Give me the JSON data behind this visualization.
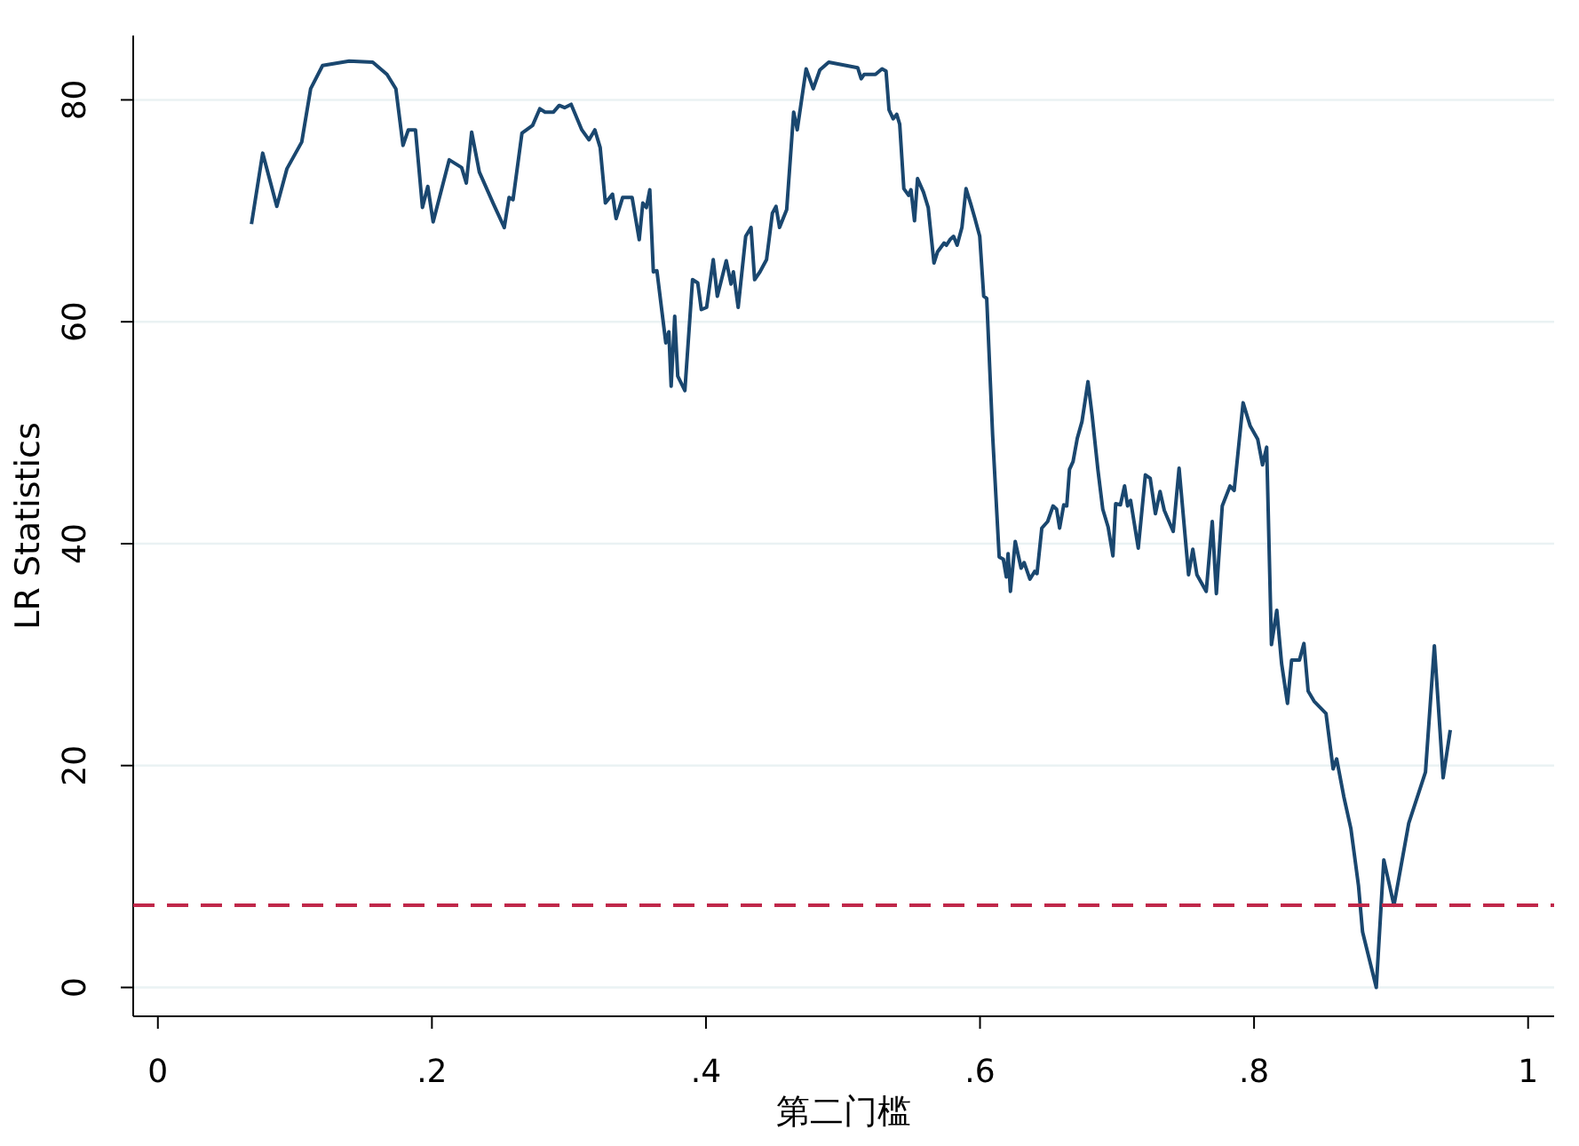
{
  "chart_data": {
    "type": "line",
    "xlabel": "第二门槛",
    "ylabel": "LR Statistics",
    "xlim": [
      -0.018,
      1.019
    ],
    "ylim": [
      -2.6,
      85.8
    ],
    "xticks": [
      0,
      {
        "value": 0.2,
        "label": ".2"
      },
      {
        "value": 0.4,
        "label": ".4"
      },
      {
        "value": 0.6,
        "label": ".6"
      },
      {
        "value": 0.8,
        "label": ".8"
      },
      1
    ],
    "yticks": [
      0,
      20,
      40,
      60,
      80
    ],
    "grid": "y",
    "line_style": "solid",
    "marker": "none",
    "ref_lines": [
      {
        "axis": "y",
        "value": 7.4,
        "color": "#c0284a",
        "line_style": "dashed"
      }
    ],
    "series": [
      {
        "color": "#1a476f",
        "x": [
          0.0683,
          0.0765,
          0.0868,
          0.0942,
          0.105,
          0.1115,
          0.1202,
          0.1396,
          0.1568,
          0.1672,
          0.1737,
          0.1789,
          0.1828,
          0.188,
          0.1931,
          0.197,
          0.2009,
          0.2126,
          0.2217,
          0.2251,
          0.229,
          0.2346,
          0.245,
          0.2528,
          0.2563,
          0.2592,
          0.2657,
          0.2735,
          0.2787,
          0.2826,
          0.2887,
          0.2929,
          0.2968,
          0.3016,
          0.3094,
          0.3146,
          0.3189,
          0.3228,
          0.3266,
          0.3318,
          0.3344,
          0.3392,
          0.3461,
          0.3513,
          0.3539,
          0.3565,
          0.359,
          0.3616,
          0.3642,
          0.3707,
          0.3729,
          0.3746,
          0.3772,
          0.3794,
          0.3846,
          0.3902,
          0.394,
          0.3966,
          0.4005,
          0.4053,
          0.4083,
          0.4148,
          0.4183,
          0.42,
          0.4235,
          0.429,
          0.4329,
          0.4355,
          0.4394,
          0.4442,
          0.4485,
          0.4511,
          0.4537,
          0.4589,
          0.464,
          0.4666,
          0.4731,
          0.4783,
          0.4831,
          0.4896,
          0.5107,
          0.5133,
          0.5155,
          0.5237,
          0.5285,
          0.5314,
          0.5336,
          0.5366,
          0.5392,
          0.5414,
          0.5444,
          0.5479,
          0.5496,
          0.5522,
          0.5544,
          0.5587,
          0.5622,
          0.5664,
          0.569,
          0.5738,
          0.5755,
          0.5781,
          0.5807,
          0.5833,
          0.5868,
          0.5898,
          0.5933,
          0.5963,
          0.5998,
          0.6027,
          0.6049,
          0.6092,
          0.614,
          0.617,
          0.6192,
          0.6205,
          0.6222,
          0.6257,
          0.63,
          0.6322,
          0.6364,
          0.6399,
          0.6416,
          0.6451,
          0.6494,
          0.6533,
          0.6559,
          0.6581,
          0.6611,
          0.6633,
          0.6653,
          0.6679,
          0.671,
          0.6744,
          0.6788,
          0.6818,
          0.6861,
          0.6896,
          0.6935,
          0.697,
          0.699,
          0.7025,
          0.7055,
          0.7077,
          0.7099,
          0.7155,
          0.7207,
          0.7242,
          0.728,
          0.7314,
          0.7345,
          0.741,
          0.7453,
          0.7522,
          0.7553,
          0.7583,
          0.7651,
          0.7695,
          0.7725,
          0.7768,
          0.7825,
          0.7855,
          0.792,
          0.7972,
          0.8027,
          0.8062,
          0.8092,
          0.8127,
          0.8166,
          0.8201,
          0.8244,
          0.8274,
          0.8331,
          0.8364,
          0.8395,
          0.8438,
          0.8525,
          0.8577,
          0.8603,
          0.8655,
          0.8707,
          0.8762,
          0.8792,
          0.8892,
          0.8947,
          0.9021,
          0.9129,
          0.9251,
          0.9316,
          0.938,
          0.9432
        ],
        "values": [
          68.8,
          75.2,
          70.4,
          73.8,
          76.2,
          81,
          83.1,
          83.5,
          83.4,
          82.3,
          81,
          75.9,
          77.3,
          77.3,
          70.3,
          72.2,
          69,
          74.6,
          73.9,
          72.5,
          77.1,
          73.5,
          70.6,
          68.5,
          71.2,
          71,
          77,
          77.7,
          79.2,
          78.9,
          78.9,
          79.5,
          79.3,
          79.6,
          77.3,
          76.4,
          77.3,
          75.7,
          70.7,
          71.5,
          69.3,
          71.2,
          71.2,
          67.4,
          70.7,
          70.3,
          71.9,
          64.5,
          64.6,
          58.1,
          59.1,
          54.2,
          60.5,
          55.1,
          53.8,
          63.8,
          63.5,
          61.1,
          61.3,
          65.6,
          62.3,
          65.5,
          63.4,
          64.5,
          61.3,
          67.7,
          68.5,
          63.8,
          64.5,
          65.6,
          69.8,
          70.4,
          68.5,
          70.1,
          78.9,
          77.3,
          82.8,
          81,
          82.7,
          83.4,
          82.9,
          81.9,
          82.3,
          82.3,
          82.8,
          82.6,
          79.1,
          78.3,
          78.7,
          77.8,
          72,
          71.4,
          71.9,
          69.1,
          72.9,
          71.7,
          70.3,
          65.3,
          66.3,
          67.1,
          66.9,
          67.4,
          67.7,
          66.9,
          68.5,
          72,
          70.6,
          69.3,
          67.7,
          62.3,
          62.1,
          49.8,
          38.8,
          38.6,
          37,
          39.1,
          35.7,
          40.2,
          37.8,
          38.3,
          36.8,
          37.5,
          37.3,
          41.4,
          42,
          43.4,
          43.1,
          41.4,
          43.5,
          43.4,
          46.7,
          47.4,
          49.5,
          51,
          54.6,
          51.6,
          46.6,
          43.1,
          41.5,
          38.9,
          43.6,
          43.5,
          45.2,
          43.4,
          43.9,
          39.6,
          46.2,
          45.9,
          42.7,
          44.7,
          43,
          41.1,
          46.8,
          37.2,
          39.5,
          37.2,
          35.7,
          42,
          35.5,
          43.4,
          45.2,
          44.8,
          52.7,
          50.6,
          49.4,
          47.1,
          48.7,
          30.9,
          34,
          29.2,
          25.6,
          29.5,
          29.5,
          31,
          26.7,
          25.8,
          24.7,
          19.7,
          20.6,
          17.2,
          14.3,
          9.2,
          5,
          0,
          11.5,
          7.4,
          14.8,
          19.4,
          30.8,
          18.9,
          23.2
        ]
      }
    ]
  }
}
